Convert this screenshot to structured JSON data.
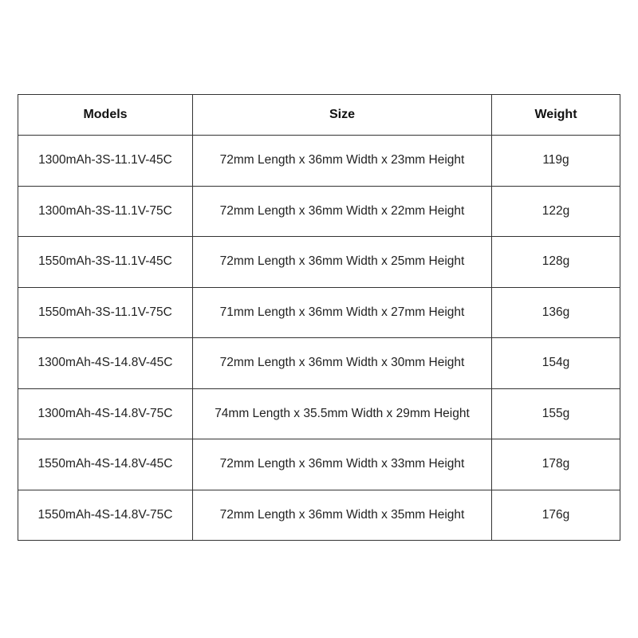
{
  "headers": [
    "Models",
    "Size",
    "Weight"
  ],
  "rows": [
    {
      "model": "1300mAh-3S-11.1V-45C",
      "size": "72mm Length x 36mm Width x 23mm Height",
      "weight": "119g"
    },
    {
      "model": "1300mAh-3S-11.1V-75C",
      "size": "72mm Length x 36mm Width x 22mm Height",
      "weight": "122g"
    },
    {
      "model": "1550mAh-3S-11.1V-45C",
      "size": "72mm Length x 36mm Width x 25mm Height",
      "weight": "128g"
    },
    {
      "model": "1550mAh-3S-11.1V-75C",
      "size": "71mm Length x 36mm Width x 27mm Height",
      "weight": "136g"
    },
    {
      "model": "1300mAh-4S-14.8V-45C",
      "size": "72mm Length x 36mm Width x 30mm Height",
      "weight": "154g"
    },
    {
      "model": "1300mAh-4S-14.8V-75C",
      "size": "74mm Length x 35.5mm Width x 29mm Height",
      "weight": "155g"
    },
    {
      "model": "1550mAh-4S-14.8V-45C",
      "size": "72mm Length x 36mm Width x 33mm Height",
      "weight": "178g"
    },
    {
      "model": "1550mAh-4S-14.8V-75C",
      "size": "72mm Length x 36mm Width x 35mm Height",
      "weight": "176g"
    }
  ]
}
